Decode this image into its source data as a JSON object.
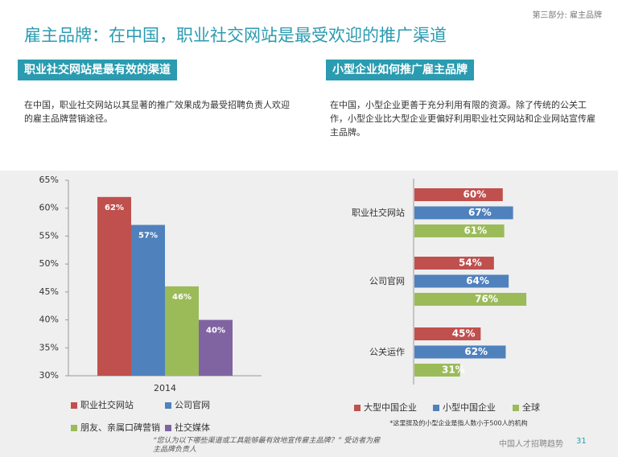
{
  "header": {
    "section": "第三部分: 雇主品牌",
    "title": "雇主品牌：在中国，职业社交网站是最受欢迎的推广渠道"
  },
  "sections": [
    {
      "heading": "职业社交网站是最有效的渠道",
      "text": "在中国，职业社交网站以其显著的推广效果成为最受招聘负责人欢迎的雇主品牌营销途径。"
    },
    {
      "heading": "小型企业如何推广雇主品牌",
      "text": "在中国，小型企业更善于充分利用有限的资源。除了传统的公关工作，小型企业比大型企业更偏好利用职业社交网站和企业网站宣传雇主品牌。"
    }
  ],
  "chart_data": [
    {
      "type": "bar",
      "categories": [
        "2014"
      ],
      "series": [
        {
          "name": "职业社交网站",
          "color": "#c0504d",
          "values": [
            62
          ],
          "value_labels": [
            "62%"
          ]
        },
        {
          "name": "公司官网",
          "color": "#4f81bd",
          "values": [
            57
          ],
          "value_labels": [
            "57%"
          ]
        },
        {
          "name": "朋友、亲属口碑营销",
          "color": "#9bbb59",
          "values": [
            46
          ],
          "value_labels": [
            "46%"
          ]
        },
        {
          "name": "社交媒体",
          "color": "#8064a2",
          "values": [
            40
          ],
          "value_labels": [
            "40%"
          ]
        }
      ],
      "ylim": [
        30,
        65
      ],
      "yticks": [
        {
          "value": 30,
          "label": "30%"
        },
        {
          "value": 35,
          "label": "35%"
        },
        {
          "value": 40,
          "label": "40%"
        },
        {
          "value": 45,
          "label": "45%"
        },
        {
          "value": 50,
          "label": "50%"
        },
        {
          "value": 55,
          "label": "55%"
        },
        {
          "value": 60,
          "label": "60%"
        },
        {
          "value": 65,
          "label": "65%"
        }
      ]
    },
    {
      "type": "barh",
      "categories": [
        "职业社交网站",
        "公司官网",
        "公关运作"
      ],
      "series": [
        {
          "name": "大型中国企业",
          "color": "#c0504d",
          "values": [
            60,
            54,
            45
          ],
          "value_labels": [
            "60%",
            "54%",
            "45%"
          ]
        },
        {
          "name": "小型中国企业",
          "color": "#4f81bd",
          "values": [
            67,
            64,
            62
          ],
          "value_labels": [
            "67%",
            "64%",
            "62%"
          ]
        },
        {
          "name": "全球",
          "color": "#9bbb59",
          "values": [
            61,
            76,
            31
          ],
          "value_labels": [
            "61%",
            "76%",
            "31%"
          ]
        }
      ],
      "xlim": [
        0,
        100
      ],
      "note": "*这里提及的小型企业是指人数小于500人的机构"
    }
  ],
  "footer": {
    "question": "“您认为以下哪些渠道或工具能够最有效地宣传雇主品牌？” 受访者为雇主品牌负责人",
    "report": "中国人才招聘趋势",
    "page": "31"
  }
}
